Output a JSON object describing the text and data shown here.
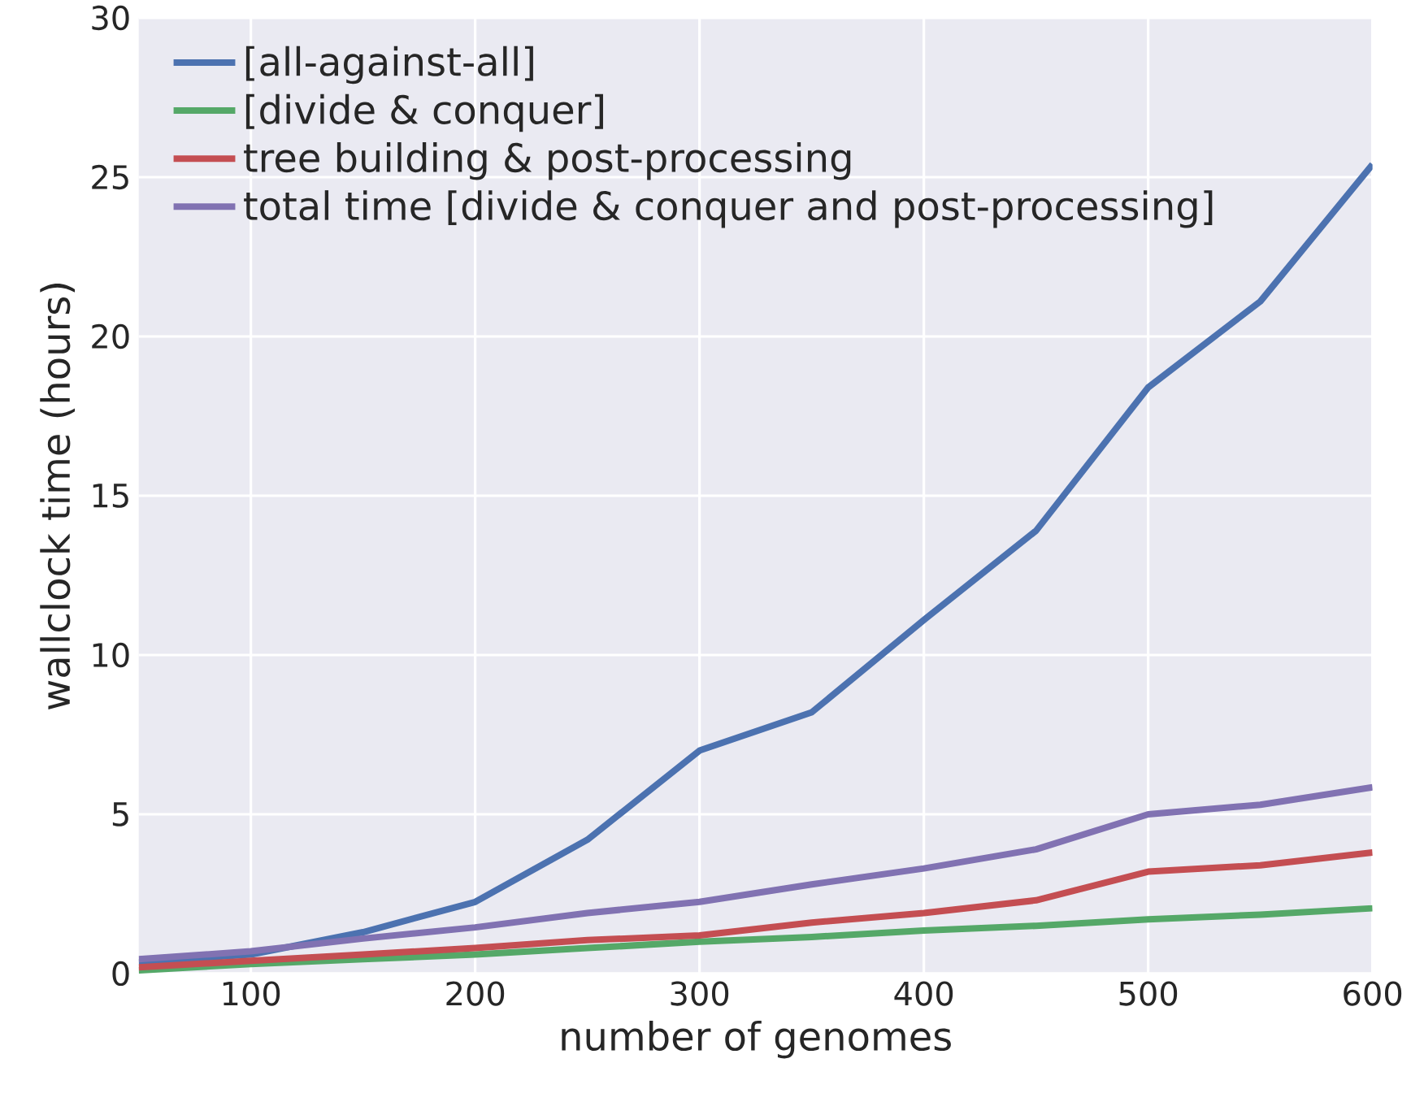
{
  "chart_data": {
    "type": "line",
    "xlabel": "number of genomes",
    "ylabel": "wallclock time (hours)",
    "x": [
      50,
      100,
      150,
      200,
      250,
      300,
      350,
      400,
      450,
      500,
      550,
      600
    ],
    "series": [
      {
        "name": "[all-against-all]",
        "color": "#4c72b0",
        "values": [
          0.35,
          0.6,
          1.3,
          2.25,
          4.2,
          7.0,
          8.2,
          11.1,
          13.9,
          18.4,
          21.1,
          25.4
        ]
      },
      {
        "name": "[divide & conquer]",
        "color": "#55a868",
        "values": [
          0.1,
          0.3,
          0.45,
          0.6,
          0.8,
          1.0,
          1.15,
          1.35,
          1.5,
          1.7,
          1.85,
          2.05
        ]
      },
      {
        "name": "tree building & post-processing",
        "color": "#c44e52",
        "values": [
          0.2,
          0.4,
          0.6,
          0.8,
          1.05,
          1.2,
          1.6,
          1.9,
          2.3,
          3.2,
          3.4,
          3.8
        ]
      },
      {
        "name": "total time [divide & conquer and post-processing]",
        "color": "#8172b2",
        "values": [
          0.45,
          0.7,
          1.1,
          1.45,
          1.9,
          2.25,
          2.8,
          3.3,
          3.9,
          5.0,
          5.3,
          5.85
        ]
      }
    ],
    "xlim": [
      50,
      600
    ],
    "ylim": [
      0,
      30
    ],
    "xticks": [
      100,
      200,
      300,
      400,
      500,
      600
    ],
    "yticks": [
      0,
      5,
      10,
      15,
      20,
      25,
      30
    ],
    "grid": true,
    "legend": "top left",
    "marker": "none",
    "line_style": "solid"
  }
}
